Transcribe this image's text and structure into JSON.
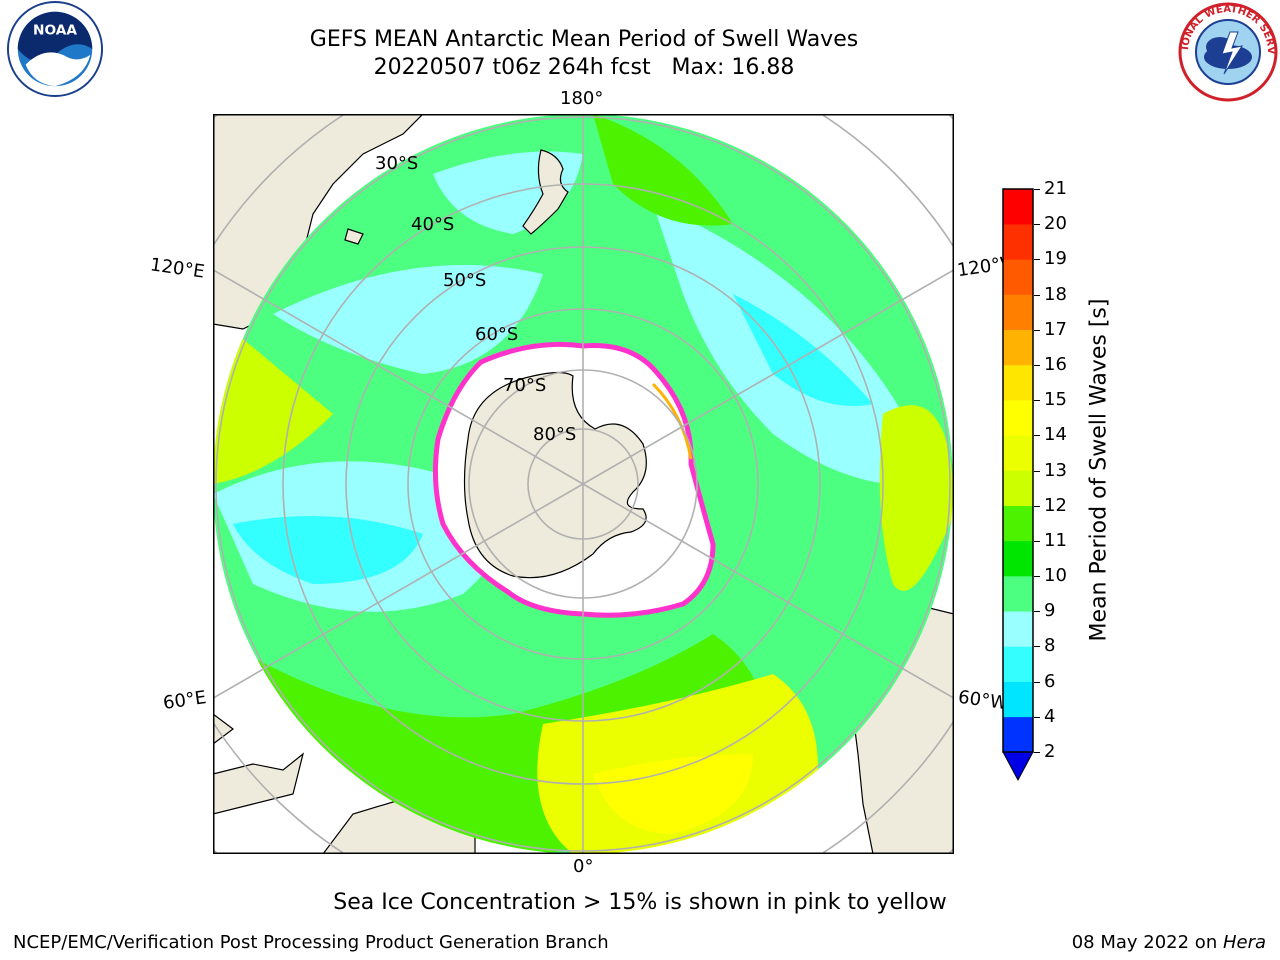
{
  "header": {
    "title_line1": "GEFS MEAN Antarctic Mean Period of Swell Waves",
    "title_line2": "20220507 t06z 264h fcst   Max: 16.88"
  },
  "logos": {
    "left": "NOAA",
    "right": "NATIONAL WEATHER SERVICE"
  },
  "map": {
    "projection": "south-polar-stereographic",
    "lon_labels": [
      "180°",
      "120°E",
      "120°W",
      "60°E",
      "60°W",
      "0°"
    ],
    "lat_labels": [
      "30°S",
      "40°S",
      "50°S",
      "60°S",
      "70°S",
      "80°S"
    ],
    "colors": {
      "land": "#efebdc",
      "ice_edge": "#ff33cc",
      "grid": "#b0b0b0"
    }
  },
  "colorbar": {
    "label": "Mean Period of Swell Waves [s]",
    "ticks": [
      "2",
      "4",
      "6",
      "8",
      "9",
      "10",
      "11",
      "12",
      "13",
      "14",
      "15",
      "16",
      "17",
      "18",
      "19",
      "20",
      "21"
    ],
    "colors": [
      "#0033ff",
      "#00e5ff",
      "#33ffff",
      "#99ffff",
      "#4dff80",
      "#00e600",
      "#4df200",
      "#ccff00",
      "#ebff00",
      "#ffff00",
      "#ffe600",
      "#ffb300",
      "#ff8000",
      "#ff5a00",
      "#ff3000",
      "#ff0000"
    ],
    "under_color": "#0000e6"
  },
  "footer": {
    "caption": "Sea Ice Concentration > 15% is shown in pink to yellow",
    "credit": "NCEP/EMC/Verification Post Processing Product Generation Branch",
    "date": "08 May 2022 on ",
    "host": "Hera"
  }
}
